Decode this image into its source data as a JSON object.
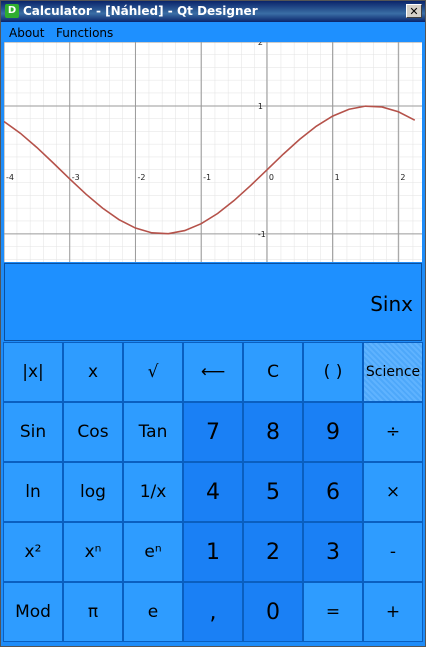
{
  "window": {
    "title": "Calculator - [Náhled] - Qt Designer",
    "icon": "D",
    "close": "✕"
  },
  "menu": [
    "About",
    "Functions"
  ],
  "graph": {
    "xlim": [
      -4,
      2.36
    ],
    "ylim": [
      -1.44,
      2
    ],
    "xticks": [
      -4,
      -3,
      -2,
      -1,
      0,
      1,
      2
    ],
    "yticks": [
      -1,
      1,
      2
    ],
    "curve_color": "#b5524a",
    "x": [
      -4,
      -3.75,
      -3.5,
      -3.25,
      -3,
      -2.75,
      -2.5,
      -2.25,
      -2,
      -1.75,
      -1.5,
      -1.25,
      -1,
      -0.75,
      -0.5,
      -0.25,
      0,
      0.25,
      0.5,
      0.75,
      1,
      1.25,
      1.5,
      1.75,
      2,
      2.25
    ],
    "y": [
      0.757,
      0.572,
      0.351,
      0.108,
      -0.141,
      -0.382,
      -0.598,
      -0.778,
      -0.909,
      -0.984,
      -0.997,
      -0.949,
      -0.841,
      -0.682,
      -0.479,
      -0.247,
      0,
      0.247,
      0.479,
      0.682,
      0.841,
      0.949,
      0.997,
      0.984,
      0.909,
      0.778
    ]
  },
  "display": "Sinx",
  "buttons": [
    [
      "|x|",
      "x",
      "√",
      "⟵",
      "C",
      "( )",
      "Science"
    ],
    [
      "Sin",
      "Cos",
      "Tan",
      "7",
      "8",
      "9",
      "÷"
    ],
    [
      "ln",
      "log",
      "1/x",
      "4",
      "5",
      "6",
      "×"
    ],
    [
      "x²",
      "xⁿ",
      "eⁿ",
      "1",
      "2",
      "3",
      "-"
    ],
    [
      "Mod",
      "π",
      "e",
      ",",
      "0",
      "=",
      "+"
    ]
  ]
}
